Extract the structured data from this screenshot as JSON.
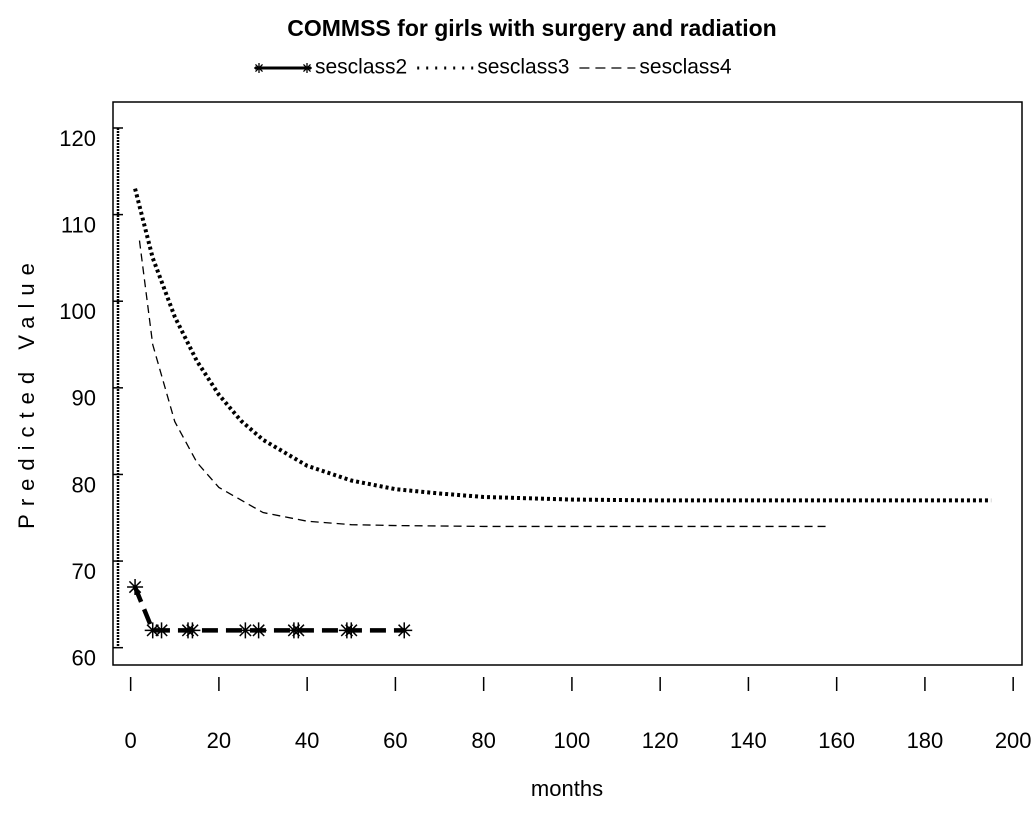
{
  "chart_data": {
    "type": "line",
    "title": "COMMSS for girls with surgery and radiation",
    "x_label": "months",
    "y_label": "Predicted Value",
    "xlim": [
      -4,
      202
    ],
    "ylim": [
      58,
      123
    ],
    "xticks": [
      0,
      20,
      40,
      60,
      80,
      100,
      120,
      140,
      160,
      180,
      200
    ],
    "yticks": [
      60,
      70,
      80,
      90,
      100,
      110,
      120
    ],
    "legend": "top",
    "series": [
      {
        "name": "sesclass2",
        "color": "#000000",
        "line_style": "dashed-thick",
        "marker": "star",
        "x": [
          1,
          5,
          7,
          13,
          14,
          26,
          29,
          37,
          38,
          49,
          50,
          62
        ],
        "values": [
          67,
          62,
          62,
          62,
          62,
          62,
          62,
          62,
          62,
          62,
          62,
          62
        ]
      },
      {
        "name": "sesclass3",
        "color": "#000000",
        "line_style": "dotted",
        "marker": "none",
        "x": [
          1,
          5,
          10,
          15,
          20,
          25,
          30,
          40,
          50,
          60,
          70,
          80,
          100,
          120,
          140,
          160,
          180,
          195
        ],
        "values": [
          113,
          105,
          98.2,
          93.1,
          89.2,
          86.2,
          84,
          81,
          79.3,
          78.3,
          77.8,
          77.4,
          77.1,
          77,
          77,
          77,
          77,
          77
        ]
      },
      {
        "name": "sesclass4",
        "color": "#000000",
        "line_style": "dashed",
        "marker": "none",
        "x": [
          2,
          5,
          10,
          15,
          20,
          30,
          40,
          50,
          60,
          80,
          100,
          120,
          140,
          158
        ],
        "values": [
          107,
          95,
          86.1,
          81.4,
          78.5,
          75.6,
          74.6,
          74.2,
          74.1,
          74,
          74,
          74,
          74,
          74
        ]
      }
    ]
  }
}
